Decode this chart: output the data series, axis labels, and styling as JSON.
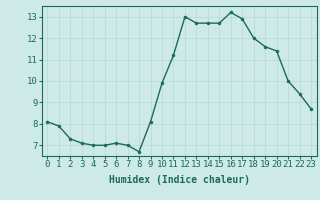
{
  "x": [
    0,
    1,
    2,
    3,
    4,
    5,
    6,
    7,
    8,
    9,
    10,
    11,
    12,
    13,
    14,
    15,
    16,
    17,
    18,
    19,
    20,
    21,
    22,
    23
  ],
  "y": [
    8.1,
    7.9,
    7.3,
    7.1,
    7.0,
    7.0,
    7.1,
    7.0,
    6.7,
    8.1,
    9.9,
    11.2,
    13.0,
    12.7,
    12.7,
    12.7,
    13.2,
    12.9,
    12.0,
    11.6,
    11.4,
    10.0,
    9.4,
    8.7
  ],
  "line_color": "#1a6b5a",
  "marker": "o",
  "marker_size": 2.0,
  "line_width": 1.0,
  "bg_color": "#ceeae8",
  "grid_color": "#b8d8d5",
  "xlabel": "Humidex (Indice chaleur)",
  "xlabel_fontsize": 7,
  "tick_fontsize": 6.5,
  "xlim": [
    -0.5,
    23.5
  ],
  "ylim": [
    6.5,
    13.5
  ],
  "yticks": [
    7,
    8,
    9,
    10,
    11,
    12,
    13
  ],
  "xticks": [
    0,
    1,
    2,
    3,
    4,
    5,
    6,
    7,
    8,
    9,
    10,
    11,
    12,
    13,
    14,
    15,
    16,
    17,
    18,
    19,
    20,
    21,
    22,
    23
  ]
}
